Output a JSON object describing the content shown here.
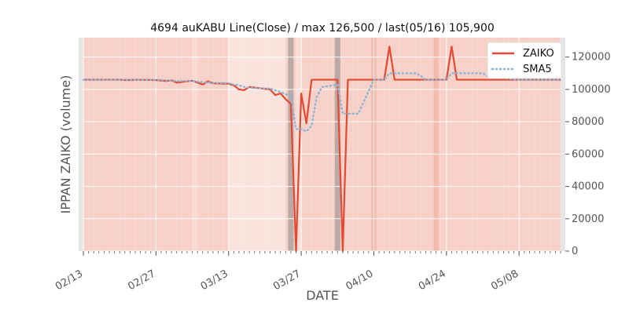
{
  "chart_data": {
    "type": "line",
    "title": "4694 auKABU Line(Close) / max 126,500 / last(05/16) 105,900",
    "xlabel": "DATE",
    "ylabel": "IPPAN ZAIKO (volume)",
    "ylim": [
      0,
      132000
    ],
    "xlim": [
      "2017-02-13",
      "2017-05-16"
    ],
    "y_ticks": [
      0,
      20000,
      40000,
      60000,
      80000,
      100000,
      120000
    ],
    "y_tick_labels": [
      "0",
      "20000",
      "40000",
      "60000",
      "80000",
      "100000",
      "120000"
    ],
    "x_ticks": [
      "2017-02-13",
      "2017-02-27",
      "2017-03-13",
      "2017-03-27",
      "2017-04-10",
      "2017-04-24",
      "2017-05-08"
    ],
    "x_tick_labels": [
      "02/13",
      "02/27",
      "03/13",
      "03/27",
      "04/10",
      "04/24",
      "05/08"
    ],
    "grid": true,
    "legend_position": "top-right",
    "colors": {
      "zaiko": "#e24a33",
      "sma5": "#8eb4d6",
      "plot_background": "#f7d0c8",
      "axes_face": "#e5e5e5",
      "text": "#555555"
    },
    "series": [
      {
        "name": "ZAIKO",
        "style": "solid",
        "points": [
          [
            "2017-02-13",
            106000
          ],
          [
            "2017-02-14",
            106000
          ],
          [
            "2017-02-15",
            106000
          ],
          [
            "2017-02-16",
            106000
          ],
          [
            "2017-02-17",
            106000
          ],
          [
            "2017-02-20",
            106000
          ],
          [
            "2017-02-21",
            105800
          ],
          [
            "2017-02-22",
            105800
          ],
          [
            "2017-02-23",
            106000
          ],
          [
            "2017-02-24",
            105900
          ],
          [
            "2017-02-27",
            105800
          ],
          [
            "2017-02-28",
            105500
          ],
          [
            "2017-03-01",
            105200
          ],
          [
            "2017-03-02",
            105600
          ],
          [
            "2017-03-03",
            104200
          ],
          [
            "2017-03-06",
            105400
          ],
          [
            "2017-03-07",
            104200
          ],
          [
            "2017-03-08",
            103000
          ],
          [
            "2017-03-09",
            105000
          ],
          [
            "2017-03-10",
            103800
          ],
          [
            "2017-03-13",
            103500
          ],
          [
            "2017-03-14",
            102500
          ],
          [
            "2017-03-15",
            100000
          ],
          [
            "2017-03-16",
            99500
          ],
          [
            "2017-03-17",
            101500
          ],
          [
            "2017-03-21",
            100000
          ],
          [
            "2017-03-22",
            96500
          ],
          [
            "2017-03-23",
            97500
          ],
          [
            "2017-03-24",
            94000
          ],
          [
            "2017-03-25",
            91000
          ],
          [
            "2017-03-26",
            0
          ],
          [
            "2017-03-27",
            97500
          ],
          [
            "2017-03-28",
            79000
          ],
          [
            "2017-03-29",
            106000
          ],
          [
            "2017-03-30",
            106000
          ],
          [
            "2017-03-31",
            106000
          ],
          [
            "2017-04-03",
            106000
          ],
          [
            "2017-04-04",
            0
          ],
          [
            "2017-04-05",
            106000
          ],
          [
            "2017-04-06",
            106000
          ],
          [
            "2017-04-07",
            106000
          ],
          [
            "2017-04-10",
            106000
          ],
          [
            "2017-04-11",
            106000
          ],
          [
            "2017-04-12",
            106000
          ],
          [
            "2017-04-13",
            126500
          ],
          [
            "2017-04-14",
            106000
          ],
          [
            "2017-04-17",
            106000
          ],
          [
            "2017-04-18",
            106000
          ],
          [
            "2017-04-19",
            106000
          ],
          [
            "2017-04-20",
            106000
          ],
          [
            "2017-04-21",
            106000
          ],
          [
            "2017-04-24",
            106000
          ],
          [
            "2017-04-25",
            126500
          ],
          [
            "2017-04-26",
            106000
          ],
          [
            "2017-04-27",
            106000
          ],
          [
            "2017-04-28",
            106000
          ],
          [
            "2017-05-01",
            106000
          ],
          [
            "2017-05-02",
            106000
          ],
          [
            "2017-05-08",
            106000
          ],
          [
            "2017-05-09",
            106000
          ],
          [
            "2017-05-10",
            106000
          ],
          [
            "2017-05-11",
            106000
          ],
          [
            "2017-05-12",
            106000
          ],
          [
            "2017-05-15",
            106000
          ],
          [
            "2017-05-16",
            105900
          ]
        ]
      },
      {
        "name": "SMA5",
        "style": "dotted",
        "points": [
          [
            "2017-02-13",
            106000
          ],
          [
            "2017-02-14",
            106000
          ],
          [
            "2017-02-15",
            106000
          ],
          [
            "2017-02-16",
            106000
          ],
          [
            "2017-02-17",
            106000
          ],
          [
            "2017-02-20",
            106000
          ],
          [
            "2017-02-21",
            106000
          ],
          [
            "2017-02-22",
            106000
          ],
          [
            "2017-02-23",
            105900
          ],
          [
            "2017-02-24",
            105900
          ],
          [
            "2017-02-27",
            105900
          ],
          [
            "2017-02-28",
            105800
          ],
          [
            "2017-03-01",
            105600
          ],
          [
            "2017-03-02",
            105500
          ],
          [
            "2017-03-03",
            105200
          ],
          [
            "2017-03-06",
            105100
          ],
          [
            "2017-03-07",
            104800
          ],
          [
            "2017-03-08",
            104500
          ],
          [
            "2017-03-09",
            104300
          ],
          [
            "2017-03-10",
            104000
          ],
          [
            "2017-03-13",
            103800
          ],
          [
            "2017-03-14",
            103000
          ],
          [
            "2017-03-15",
            102500
          ],
          [
            "2017-03-16",
            101500
          ],
          [
            "2017-03-17",
            101000
          ],
          [
            "2017-03-21",
            100500
          ],
          [
            "2017-03-22",
            99500
          ],
          [
            "2017-03-23",
            98500
          ],
          [
            "2017-03-24",
            97000
          ],
          [
            "2017-03-25",
            96000
          ],
          [
            "2017-03-26",
            75500
          ],
          [
            "2017-03-27",
            75500
          ],
          [
            "2017-03-28",
            74000
          ],
          [
            "2017-03-29",
            77500
          ],
          [
            "2017-03-30",
            95500
          ],
          [
            "2017-03-31",
            101500
          ],
          [
            "2017-04-03",
            103000
          ],
          [
            "2017-04-04",
            85000
          ],
          [
            "2017-04-05",
            85000
          ],
          [
            "2017-04-06",
            85000
          ],
          [
            "2017-04-07",
            85000
          ],
          [
            "2017-04-10",
            106000
          ],
          [
            "2017-04-11",
            106000
          ],
          [
            "2017-04-12",
            106000
          ],
          [
            "2017-04-13",
            110000
          ],
          [
            "2017-04-14",
            110000
          ],
          [
            "2017-04-17",
            110000
          ],
          [
            "2017-04-18",
            110000
          ],
          [
            "2017-04-19",
            108500
          ],
          [
            "2017-04-20",
            106000
          ],
          [
            "2017-04-21",
            106000
          ],
          [
            "2017-04-24",
            106000
          ],
          [
            "2017-04-25",
            110000
          ],
          [
            "2017-04-26",
            110000
          ],
          [
            "2017-04-27",
            110000
          ],
          [
            "2017-04-28",
            110000
          ],
          [
            "2017-05-01",
            110000
          ],
          [
            "2017-05-02",
            108000
          ],
          [
            "2017-05-08",
            106000
          ],
          [
            "2017-05-09",
            106000
          ],
          [
            "2017-05-10",
            106000
          ],
          [
            "2017-05-11",
            106000
          ],
          [
            "2017-05-12",
            106000
          ],
          [
            "2017-05-15",
            106000
          ],
          [
            "2017-05-16",
            106000
          ]
        ]
      }
    ]
  }
}
